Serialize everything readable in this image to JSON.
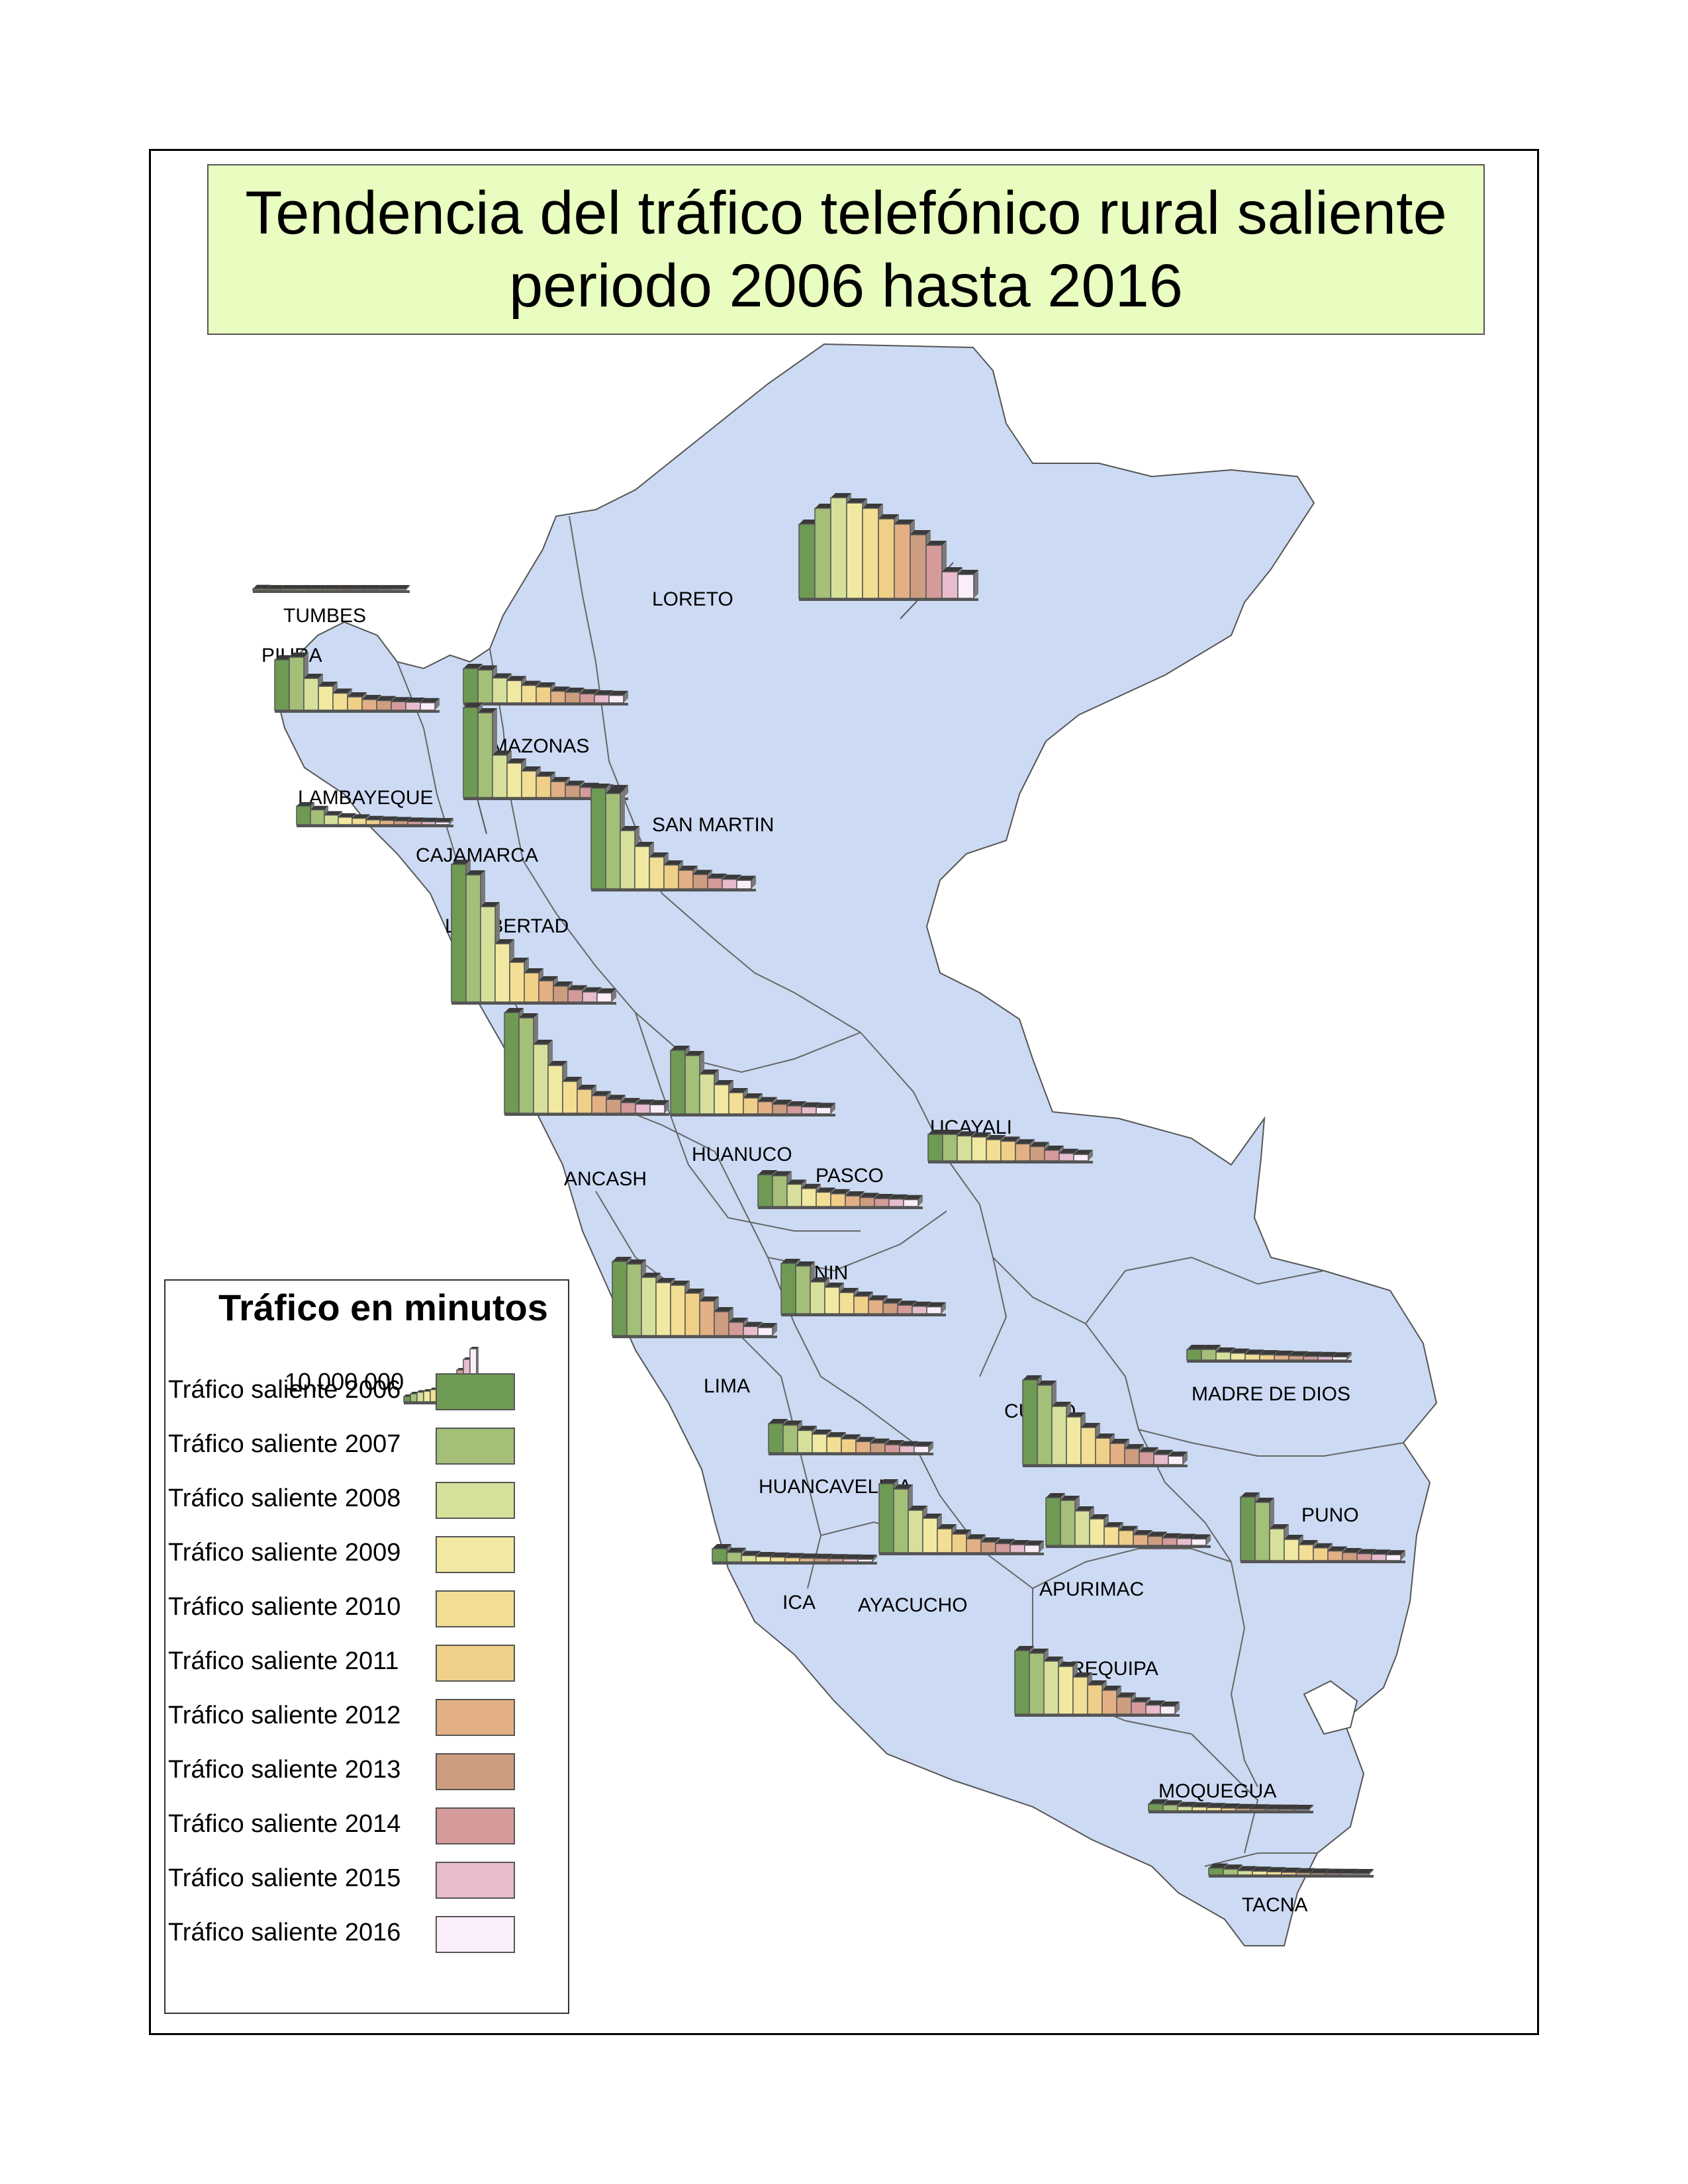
{
  "title": {
    "line1": "Tendencia del tráfico telefónico rural saliente",
    "line2": "periodo 2006 hasta 2016"
  },
  "legend": {
    "title": "Tráfico en minutos",
    "scale_value": "10,000,000",
    "items": [
      {
        "label": "Tráfico saliente 2006",
        "color": "#6f9a54"
      },
      {
        "label": "Tráfico saliente 2007",
        "color": "#a3bf78"
      },
      {
        "label": "Tráfico saliente 2008",
        "color": "#d6e09a"
      },
      {
        "label": "Tráfico saliente 2009",
        "color": "#f1e9a1"
      },
      {
        "label": "Tráfico saliente 2010",
        "color": "#f2de94"
      },
      {
        "label": "Tráfico saliente 2011",
        "color": "#f0cf88"
      },
      {
        "label": "Tráfico saliente 2012",
        "color": "#e2b084"
      },
      {
        "label": "Tráfico saliente 2013",
        "color": "#cd9d80"
      },
      {
        "label": "Tráfico saliente 2014",
        "color": "#d59a9a"
      },
      {
        "label": "Tráfico saliente 2015",
        "color": "#e8bccd"
      },
      {
        "label": "Tráfico saliente 2016",
        "color": "#fbeefb"
      }
    ]
  },
  "map": {
    "land_color": "#ccdaf3",
    "water_color": "#ffffff",
    "regions": [
      {
        "name": "TUMBES"
      },
      {
        "name": "PIURA"
      },
      {
        "name": "LORETO"
      },
      {
        "name": "AMAZONAS"
      },
      {
        "name": "LAMBAYEQUE"
      },
      {
        "name": "SAN MARTIN"
      },
      {
        "name": "CAJAMARCA"
      },
      {
        "name": "LA LIBERTAD"
      },
      {
        "name": "UCAYALI"
      },
      {
        "name": "HUANUCO"
      },
      {
        "name": "PASCO"
      },
      {
        "name": "ANCASH"
      },
      {
        "name": "JUNIN"
      },
      {
        "name": "MADRE DE DIOS"
      },
      {
        "name": "LIMA"
      },
      {
        "name": "CUSCO"
      },
      {
        "name": "HUANCAVELICA"
      },
      {
        "name": "PUNO"
      },
      {
        "name": "ICA"
      },
      {
        "name": "AYACUCHO"
      },
      {
        "name": "APURIMAC"
      },
      {
        "name": "AREQUIPA"
      },
      {
        "name": "MOQUEGUA"
      },
      {
        "name": "TACNA"
      }
    ]
  },
  "chart_data": {
    "type": "bar",
    "years": [
      "2006",
      "2007",
      "2008",
      "2009",
      "2010",
      "2011",
      "2012",
      "2013",
      "2014",
      "2015",
      "2016"
    ],
    "unit": "minutos",
    "reference": {
      "label": "10,000,000",
      "values": [
        1000000,
        1500000,
        1800000,
        2000000,
        2300000,
        2700000,
        3300000,
        4500000,
        6000000,
        8000000,
        10000000
      ]
    },
    "series": [
      {
        "region": "LORETO",
        "values": [
          14000000,
          17000000,
          19000000,
          18000000,
          17000000,
          15000000,
          14000000,
          12000000,
          10000000,
          5000000,
          4500000
        ]
      },
      {
        "region": "TUMBES",
        "values": [
          300000,
          200000,
          200000,
          150000,
          150000,
          100000,
          100000,
          100000,
          100000,
          100000,
          100000
        ]
      },
      {
        "region": "PIURA",
        "values": [
          9500000,
          10000000,
          6000000,
          4500000,
          3200000,
          2500000,
          2000000,
          1800000,
          1600000,
          1500000,
          1400000
        ]
      },
      {
        "region": "AMAZONAS",
        "values": [
          6500000,
          6200000,
          4700000,
          4200000,
          3300000,
          3000000,
          2200000,
          2000000,
          1700000,
          1500000,
          1400000
        ]
      },
      {
        "region": "CAJAMARCA",
        "values": [
          17000000,
          16000000,
          8000000,
          6500000,
          5000000,
          4000000,
          3000000,
          2300000,
          1900000,
          1600000,
          1500000
        ]
      },
      {
        "region": "LAMBAYEQUE",
        "values": [
          3500000,
          2800000,
          1800000,
          1400000,
          1200000,
          900000,
          800000,
          700000,
          600000,
          550000,
          500000
        ]
      },
      {
        "region": "SAN MARTIN",
        "values": [
          19000000,
          18000000,
          11000000,
          8000000,
          6000000,
          4500000,
          3500000,
          2700000,
          2000000,
          1800000,
          1600000
        ]
      },
      {
        "region": "LA LIBERTAD",
        "values": [
          26000000,
          24000000,
          18000000,
          11000000,
          7500000,
          5500000,
          4000000,
          3000000,
          2300000,
          1900000,
          1700000
        ]
      },
      {
        "region": "ANCASH",
        "values": [
          19000000,
          18000000,
          13000000,
          9000000,
          6000000,
          4500000,
          3300000,
          2600000,
          2000000,
          1700000,
          1600000
        ]
      },
      {
        "region": "HUANUCO",
        "values": [
          12000000,
          11000000,
          7500000,
          5500000,
          4000000,
          3000000,
          2300000,
          1800000,
          1500000,
          1300000,
          1200000
        ]
      },
      {
        "region": "UCAYALI",
        "values": [
          5000000,
          5000000,
          4700000,
          4500000,
          4000000,
          3700000,
          3200000,
          2700000,
          2000000,
          1400000,
          1200000
        ]
      },
      {
        "region": "PASCO",
        "values": [
          6000000,
          5800000,
          4200000,
          3400000,
          2700000,
          2400000,
          2000000,
          1700000,
          1500000,
          1400000,
          1300000
        ]
      },
      {
        "region": "JUNIN",
        "values": [
          9500000,
          9000000,
          6000000,
          5000000,
          4000000,
          3300000,
          2600000,
          2000000,
          1600000,
          1400000,
          1300000
        ]
      },
      {
        "region": "LIMA",
        "values": [
          14000000,
          13500000,
          11000000,
          10000000,
          9500000,
          8000000,
          6500000,
          4500000,
          2500000,
          1700000,
          1500000
        ]
      },
      {
        "region": "MADRE DE DIOS",
        "values": [
          2000000,
          2000000,
          1500000,
          1300000,
          1100000,
          1000000,
          900000,
          800000,
          700000,
          650000,
          600000
        ]
      },
      {
        "region": "CUSCO",
        "values": [
          16000000,
          15000000,
          11000000,
          9000000,
          7000000,
          5000000,
          4000000,
          3000000,
          2400000,
          1900000,
          1600000
        ]
      },
      {
        "region": "HUANCAVELICA",
        "values": [
          5500000,
          5200000,
          4200000,
          3500000,
          3000000,
          2600000,
          2100000,
          1800000,
          1500000,
          1300000,
          1200000
        ]
      },
      {
        "region": "AYACUCHO",
        "values": [
          13000000,
          12000000,
          8000000,
          6500000,
          4500000,
          3500000,
          2600000,
          2000000,
          1700000,
          1500000,
          1400000
        ]
      },
      {
        "region": "APURIMAC",
        "values": [
          9000000,
          8500000,
          6500000,
          5000000,
          3500000,
          2800000,
          2000000,
          1700000,
          1400000,
          1300000,
          1200000
        ]
      },
      {
        "region": "PUNO",
        "values": [
          12000000,
          11000000,
          6000000,
          4000000,
          3000000,
          2400000,
          1800000,
          1500000,
          1300000,
          1200000,
          1100000
        ]
      },
      {
        "region": "ICA",
        "values": [
          2500000,
          1800000,
          1200000,
          1000000,
          900000,
          800000,
          700000,
          650000,
          600000,
          550000,
          500000
        ]
      },
      {
        "region": "AREQUIPA",
        "values": [
          12000000,
          11500000,
          10000000,
          9000000,
          7000000,
          5500000,
          4500000,
          3200000,
          2300000,
          1700000,
          1500000
        ]
      },
      {
        "region": "MOQUEGUA",
        "values": [
          1300000,
          1100000,
          800000,
          700000,
          600000,
          500000,
          400000,
          350000,
          300000,
          280000,
          250000
        ]
      },
      {
        "region": "TACNA",
        "values": [
          1300000,
          1100000,
          800000,
          700000,
          600000,
          500000,
          400000,
          350000,
          300000,
          280000,
          250000
        ]
      }
    ]
  }
}
